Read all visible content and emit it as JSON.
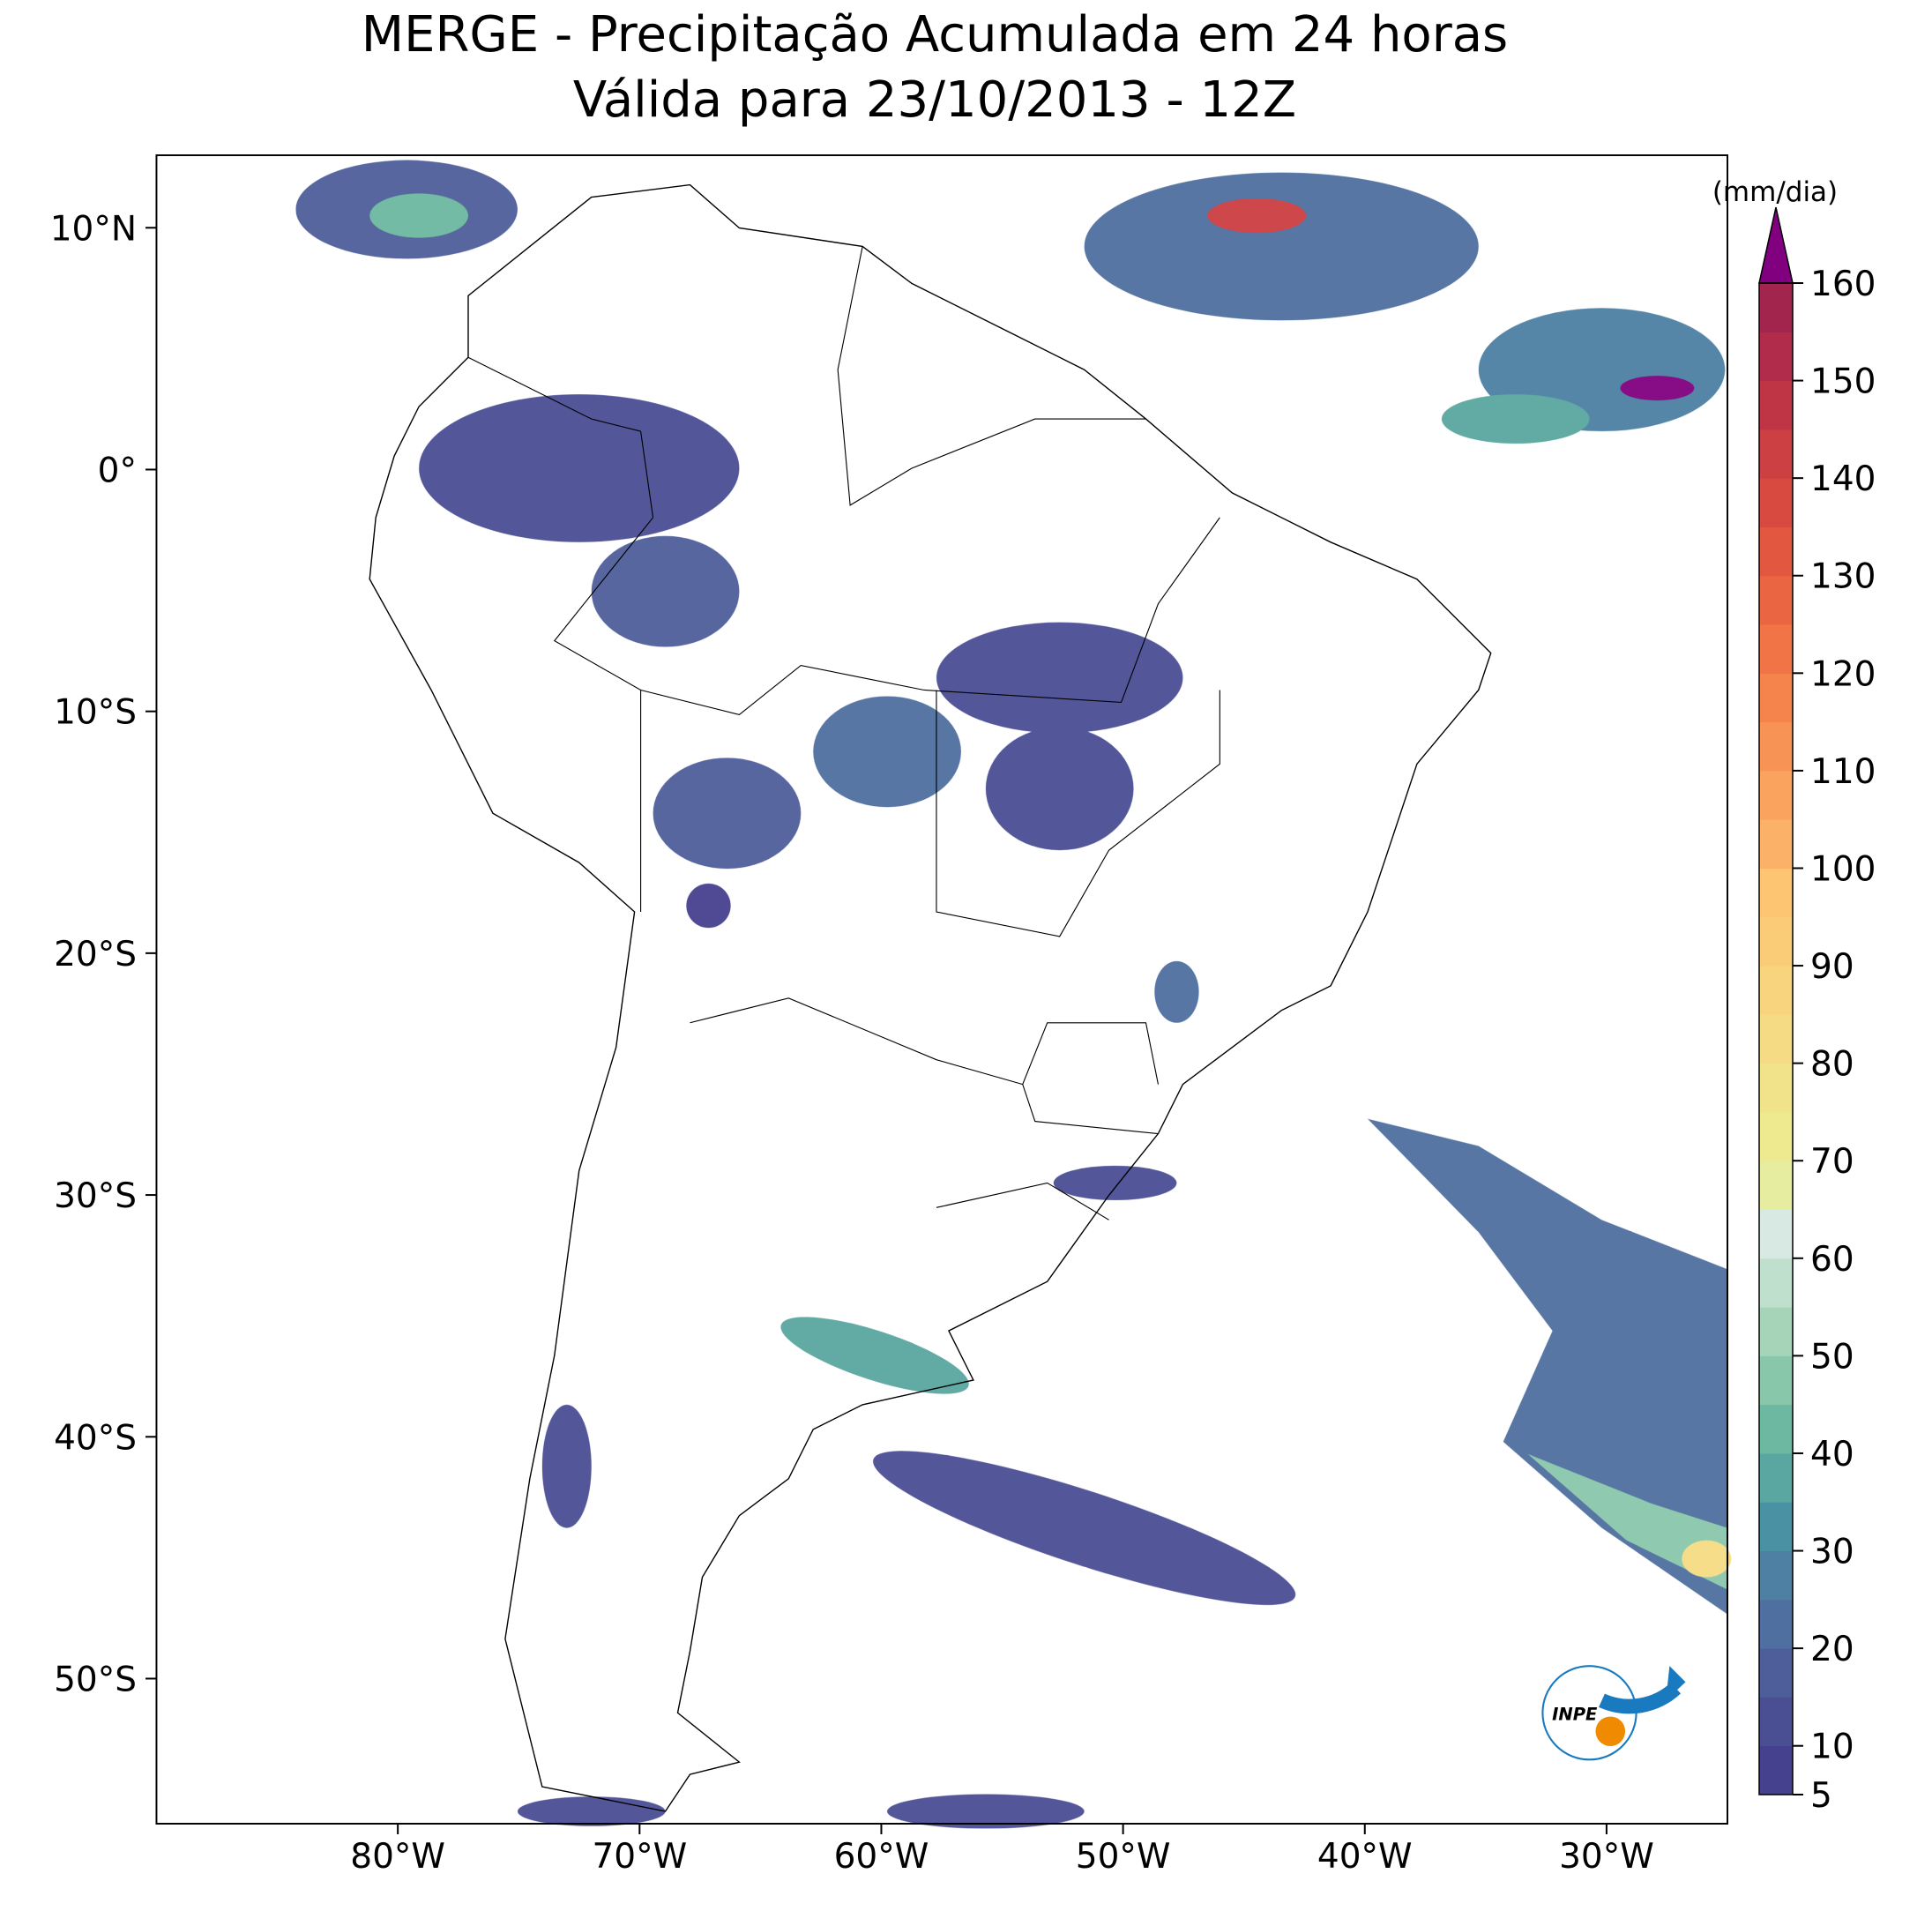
{
  "title": [
    "MERGE - Precipitação Acumulada em 24 horas",
    "Válida para 23/10/2013 - 12Z"
  ],
  "map": {
    "xlim": [
      -90,
      -25
    ],
    "ylim": [
      -56,
      13
    ],
    "xticks": [
      {
        "value": -80,
        "label": "80°W"
      },
      {
        "value": -70,
        "label": "70°W"
      },
      {
        "value": -60,
        "label": "60°W"
      },
      {
        "value": -50,
        "label": "50°W"
      },
      {
        "value": -40,
        "label": "40°W"
      },
      {
        "value": -30,
        "label": "30°W"
      }
    ],
    "yticks": [
      {
        "value": 10,
        "label": "10°N"
      },
      {
        "value": 0,
        "label": "0°"
      },
      {
        "value": -10,
        "label": "10°S"
      },
      {
        "value": -20,
        "label": "20°S"
      },
      {
        "value": -30,
        "label": "30°S"
      },
      {
        "value": -40,
        "label": "40°S"
      },
      {
        "value": -50,
        "label": "50°S"
      }
    ]
  },
  "colorbar": {
    "label": "(mm/dia)",
    "range": [
      5,
      160
    ],
    "ticks": [
      5,
      10,
      20,
      30,
      40,
      50,
      60,
      70,
      80,
      90,
      100,
      110,
      120,
      130,
      140,
      150,
      160
    ],
    "levels": [
      5,
      10,
      15,
      20,
      25,
      30,
      35,
      40,
      45,
      50,
      55,
      60,
      65,
      70,
      75,
      80,
      85,
      90,
      95,
      100,
      105,
      110,
      115,
      120,
      125,
      130,
      135,
      140,
      145,
      150,
      155,
      160
    ],
    "colors": [
      "#46418e",
      "#4a4f94",
      "#4e5e9a",
      "#4f6fa0",
      "#4d80a3",
      "#4b91a4",
      "#5aa6a0",
      "#6cb8a0",
      "#89c7ab",
      "#a5d4b8",
      "#bfe0cc",
      "#d8e9e4",
      "#e6eca0",
      "#edea90",
      "#f1e38a",
      "#f5dc84",
      "#f8d47e",
      "#fbcc78",
      "#fdc472",
      "#fbb268",
      "#f9a35e",
      "#f79455",
      "#f4844c",
      "#f07446",
      "#ea6541",
      "#e2573f",
      "#d84a3f",
      "#cc3f42",
      "#bf3546",
      "#b12c4a",
      "#a2254e"
    ],
    "extend_color": "#800080"
  },
  "logo": "INPE"
}
